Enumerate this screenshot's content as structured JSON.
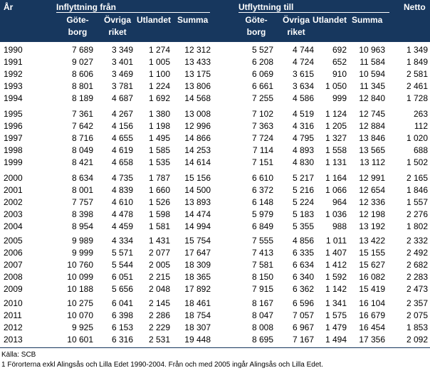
{
  "headers": {
    "year": "År",
    "inflow_group": "Inflyttning från",
    "outflow_group": "Utflyttning till",
    "netto": "Netto",
    "in_goteborg_1": "Göte-",
    "in_goteborg_2": "borg",
    "in_ovriga_1": "Övriga",
    "in_ovriga_2": "riket",
    "in_utlandet": "Utlandet",
    "in_summa": "Summa",
    "out_goteborg_1": "Göte-",
    "out_goteborg_2": "borg",
    "out_ovriga_1": "Övriga",
    "out_ovriga_2": "riket",
    "out_utlandet": "Utlandet",
    "out_summa": "Summa"
  },
  "rows": [
    [
      "1990",
      "7 689",
      "3 349",
      "1 274",
      "12 312",
      "5 527",
      "4 744",
      "692",
      "10 963",
      "1 349"
    ],
    [
      "1991",
      "9 027",
      "3 401",
      "1 005",
      "13 433",
      "6 208",
      "4 724",
      "652",
      "11 584",
      "1 849"
    ],
    [
      "1992",
      "8 606",
      "3 469",
      "1 100",
      "13 175",
      "6 069",
      "3 615",
      "910",
      "10 594",
      "2 581"
    ],
    [
      "1993",
      "8 801",
      "3 781",
      "1 224",
      "13 806",
      "6 661",
      "3 634",
      "1 050",
      "11 345",
      "2 461"
    ],
    [
      "1994",
      "8 189",
      "4 687",
      "1 692",
      "14 568",
      "7 255",
      "4 586",
      "999",
      "12 840",
      "1 728"
    ],
    [
      "1995",
      "7 361",
      "4 267",
      "1 380",
      "13 008",
      "7 102",
      "4 519",
      "1 124",
      "12 745",
      "263"
    ],
    [
      "1996",
      "7 642",
      "4 156",
      "1 198",
      "12 996",
      "7 363",
      "4 316",
      "1 205",
      "12 884",
      "112"
    ],
    [
      "1997",
      "8 716",
      "4 655",
      "1 495",
      "14 866",
      "7 724",
      "4 795",
      "1 327",
      "13 846",
      "1 020"
    ],
    [
      "1998",
      "8 049",
      "4 619",
      "1 585",
      "14 253",
      "7 114",
      "4 893",
      "1 558",
      "13 565",
      "688"
    ],
    [
      "1999",
      "8 421",
      "4 658",
      "1 535",
      "14 614",
      "7 151",
      "4 830",
      "1 131",
      "13 112",
      "1 502"
    ],
    [
      "2000",
      "8 634",
      "4 735",
      "1 787",
      "15 156",
      "6 610",
      "5 217",
      "1 164",
      "12 991",
      "2 165"
    ],
    [
      "2001",
      "8 001",
      "4 839",
      "1 660",
      "14 500",
      "6 372",
      "5 216",
      "1 066",
      "12 654",
      "1 846"
    ],
    [
      "2002",
      "7 757",
      "4 610",
      "1 526",
      "13 893",
      "6 148",
      "5 224",
      "964",
      "12 336",
      "1 557"
    ],
    [
      "2003",
      "8 398",
      "4 478",
      "1 598",
      "14 474",
      "5 979",
      "5 183",
      "1 036",
      "12 198",
      "2 276"
    ],
    [
      "2004",
      "8 954",
      "4 459",
      "1 581",
      "14 994",
      "6 849",
      "5 355",
      "988",
      "13 192",
      "1 802"
    ],
    [
      "2005",
      "9 989",
      "4 334",
      "1 431",
      "15 754",
      "7 555",
      "4 856",
      "1 011",
      "13 422",
      "2 332"
    ],
    [
      "2006",
      "9 999",
      "5 571",
      "2 077",
      "17 647",
      "7 413",
      "6 335",
      "1 407",
      "15 155",
      "2 492"
    ],
    [
      "2007",
      "10 760",
      "5 544",
      "2 005",
      "18 309",
      "7 581",
      "6 634",
      "1 412",
      "15 627",
      "2 682"
    ],
    [
      "2008",
      "10 099",
      "6 051",
      "2 215",
      "18 365",
      "8 150",
      "6 340",
      "1 592",
      "16 082",
      "2 283"
    ],
    [
      "2009",
      "10 188",
      "5 656",
      "2 048",
      "17 892",
      "7 915",
      "6 362",
      "1 142",
      "15 419",
      "2 473"
    ],
    [
      "2010",
      "10 275",
      "6 041",
      "2 145",
      "18 461",
      "8 167",
      "6 596",
      "1 341",
      "16 104",
      "2 357"
    ],
    [
      "2011",
      "10 070",
      "6 398",
      "2 286",
      "18 754",
      "8 047",
      "7 057",
      "1 575",
      "16 679",
      "2 075"
    ],
    [
      "2012",
      "9 925",
      "6 153",
      "2 229",
      "18 307",
      "8 008",
      "6 967",
      "1 479",
      "16 454",
      "1 853"
    ],
    [
      "2013",
      "10 601",
      "6 316",
      "2 531",
      "19 448",
      "8 695",
      "7 167",
      "1 494",
      "17 356",
      "2 092"
    ]
  ],
  "footer": {
    "source": "Källa:  SCB",
    "note": "1 Förorterna exkl Alingsås och Lilla Edet 1990-2004. Från och med 2005 ingår Alingsås och Lilla Edet."
  }
}
